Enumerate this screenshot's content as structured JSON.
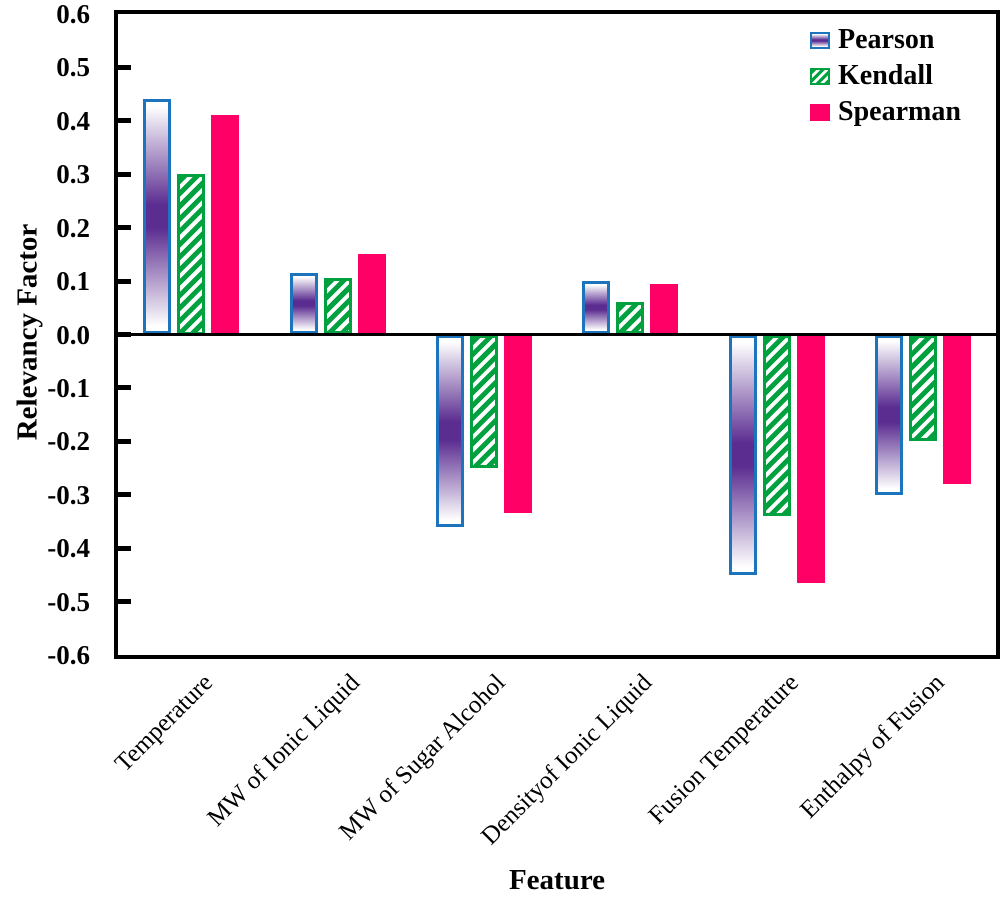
{
  "chart_data": {
    "type": "bar",
    "title": "",
    "xlabel": "Feature",
    "ylabel": "Relevancy Factor",
    "ylim": [
      -0.6,
      0.6
    ],
    "ytick_step": 0.1,
    "ytick_labels": [
      "0.6",
      "0.5",
      "0.4",
      "0.3",
      "0.2",
      "0.1",
      "0.0",
      "-0.1",
      "-0.2",
      "-0.3",
      "-0.4",
      "-0.5",
      "-0.6"
    ],
    "grid": false,
    "legend_position": "top-right",
    "axis_color": "#000000",
    "categories": [
      "Temperature",
      "MW of Ionic Liquid",
      "MW of Sugar Alcohol",
      "Densityof Ionic Liquid",
      "Fusion Temperature",
      "Enthalpy of Fusion"
    ],
    "series": [
      {
        "name": "Pearson",
        "style": "gradient",
        "border_color": "#1C75BC",
        "fill_top": "#FFFFFF",
        "fill_mid": "#5B2D91",
        "values": [
          0.44,
          0.115,
          -0.36,
          0.1,
          -0.45,
          -0.3
        ]
      },
      {
        "name": "Kendall",
        "style": "hatch",
        "border_color": "#00A13E",
        "hatch_color": "#00A13E",
        "hatch_bg": "#FFFFFF",
        "values": [
          0.3,
          0.105,
          -0.25,
          0.06,
          -0.34,
          -0.2
        ]
      },
      {
        "name": "Spearman",
        "style": "solid",
        "fill": "#FF0066",
        "values": [
          0.41,
          0.15,
          -0.335,
          0.095,
          -0.465,
          -0.28
        ]
      }
    ]
  }
}
